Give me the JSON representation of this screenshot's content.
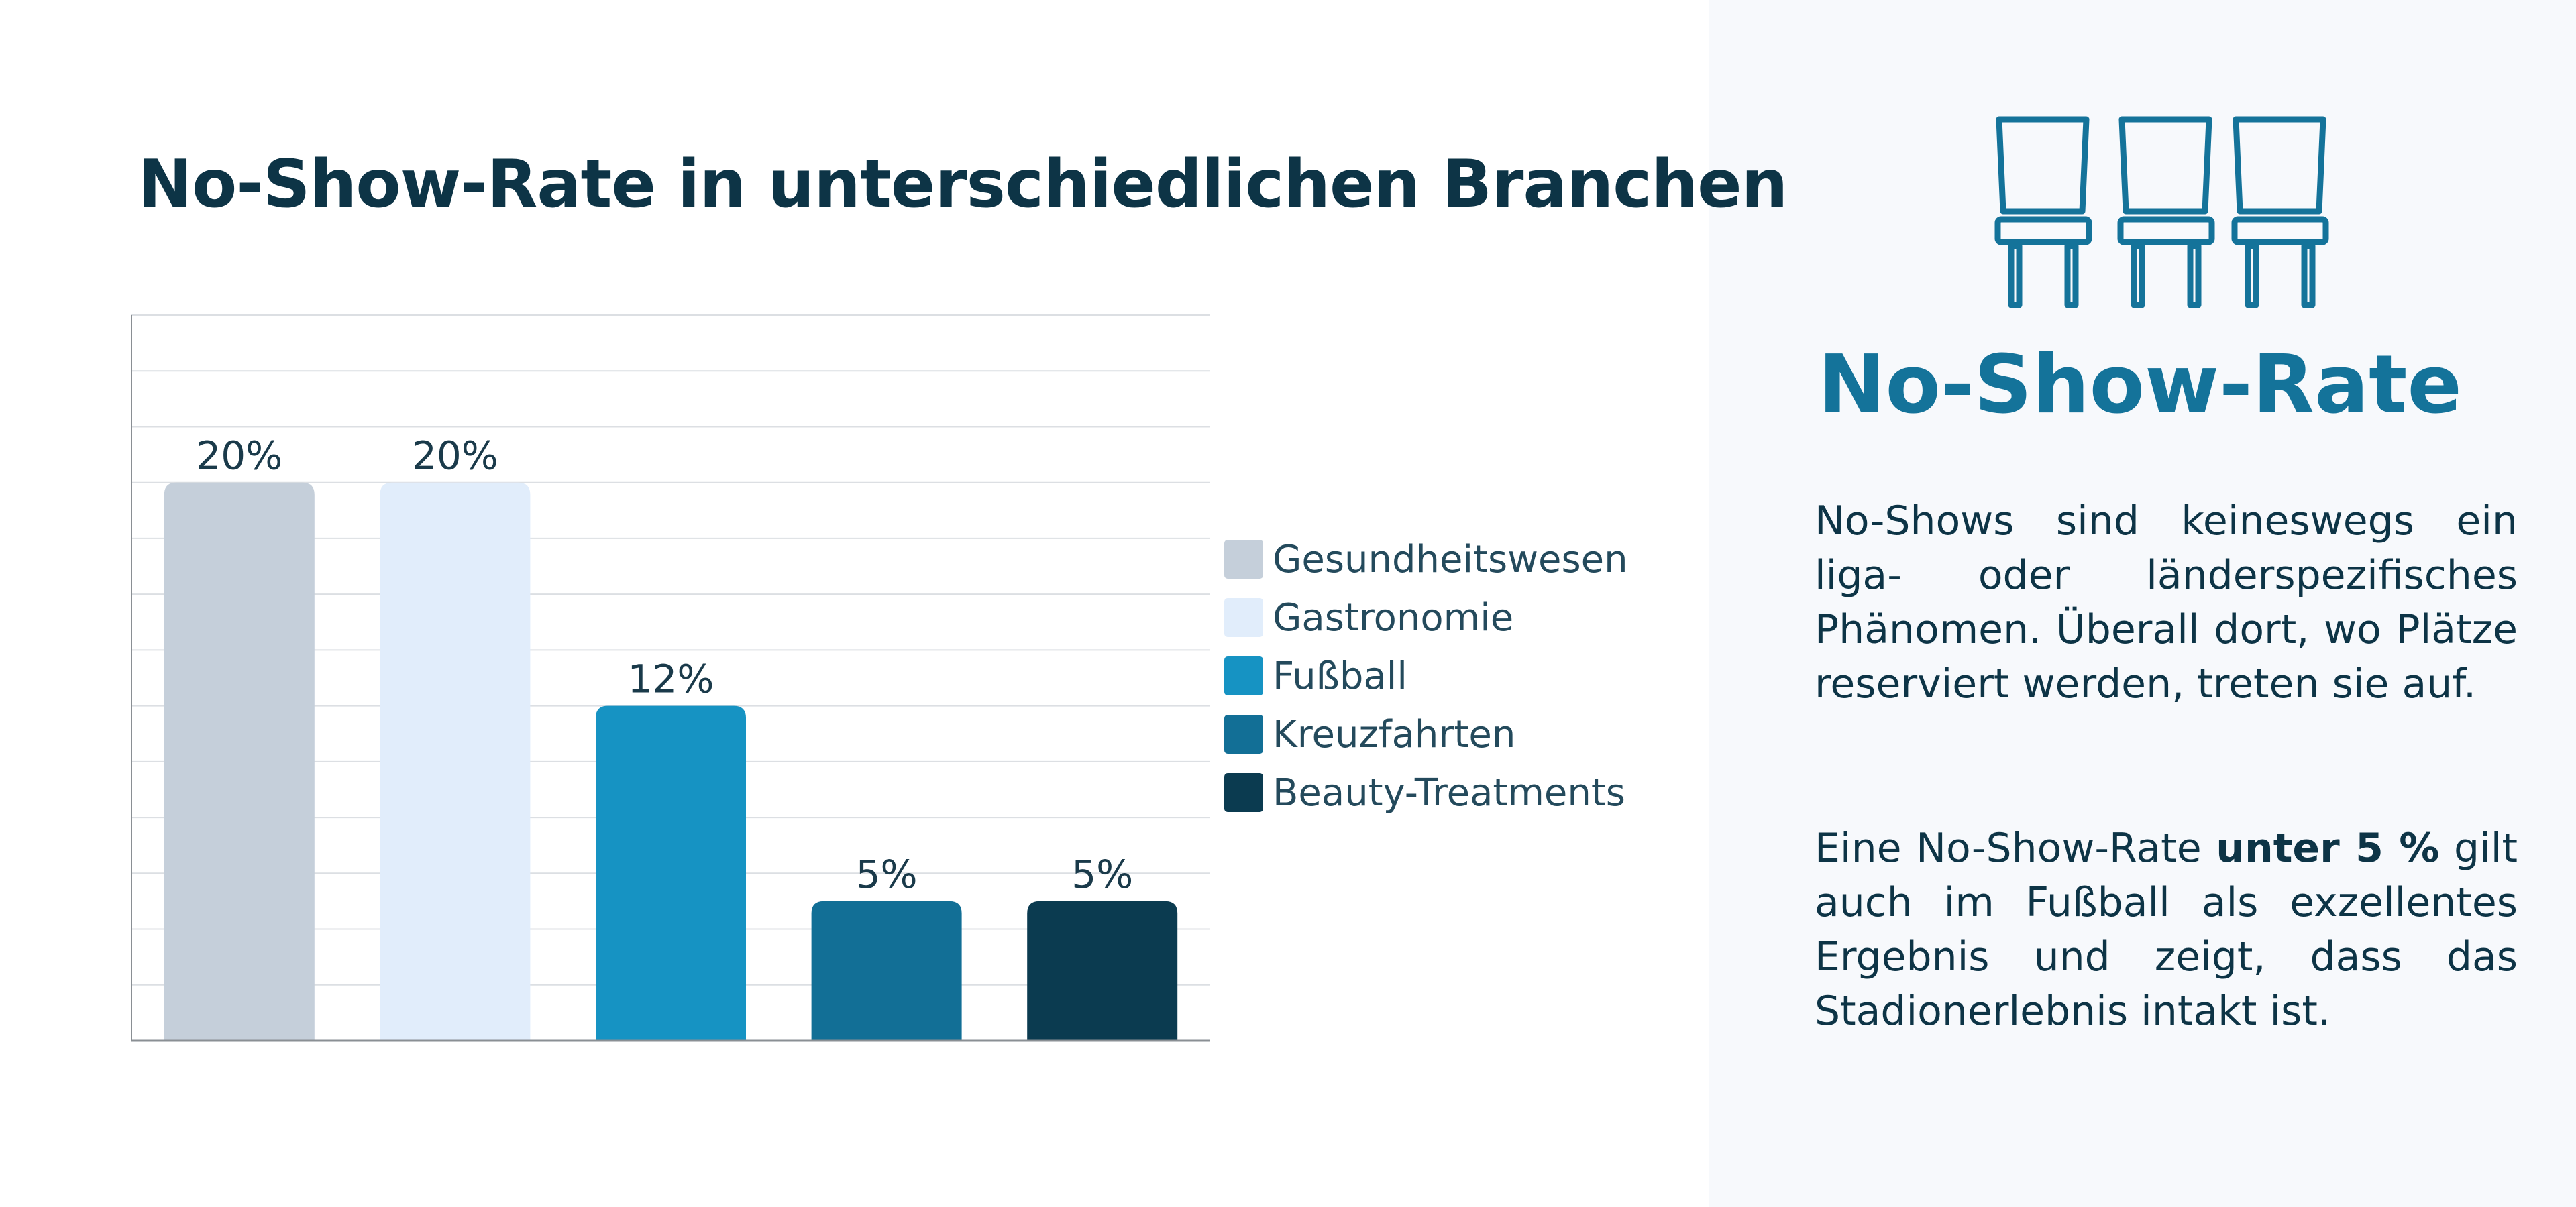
{
  "chart_data": {
    "type": "bar",
    "title": "No-Show-Rate in unterschiedlichen Branchen",
    "categories": [
      "Gesundheitswesen",
      "Gastronomie",
      "Fußball",
      "Kreuzfahrten",
      "Beauty-Treatments"
    ],
    "values": [
      20,
      20,
      12,
      5,
      5
    ],
    "value_labels": [
      "20%",
      "20%",
      "12%",
      "5%",
      "5%"
    ],
    "colors": [
      "#c5cfda",
      "#e1edfb",
      "#1693c3",
      "#126f96",
      "#0b3b50"
    ],
    "ylim": [
      0,
      26
    ],
    "grid": true,
    "xlabel": "",
    "ylabel": "",
    "legend": "right"
  },
  "side": {
    "icon": "chairs-icon",
    "title": "No-Show-Rate",
    "para1": "No-Shows sind keineswegs ein liga- oder länderspezifisches Phänomen. Überall dort, wo Plätze reserviert werden, treten sie auf.",
    "para2_before": "Eine No-Show-Rate ",
    "para2_bold": "unter 5 %",
    "para2_after": " gilt auch im Fußball als exzellentes Ergebnis und zeigt, dass das Stadionerlebnis intakt ist."
  },
  "colors": {
    "title": "#0d3446",
    "accent": "#14739a",
    "panel_bg": "#f7f9fc"
  }
}
